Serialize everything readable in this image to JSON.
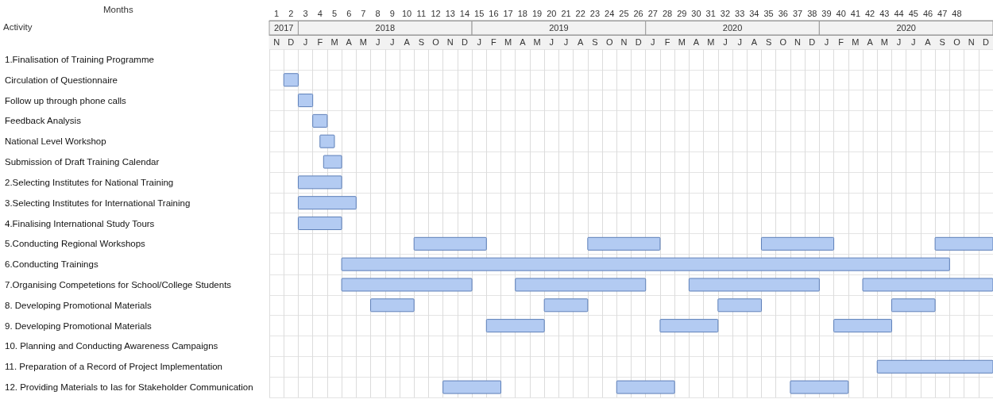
{
  "chart_data": {
    "type": "bar",
    "orientation": "horizontal",
    "xlabel": "Months",
    "ylabel": "Activity",
    "categories": [
      "1.Finalisation of Training Programme",
      "Circulation of Questionnaire",
      "Follow up through phone calls",
      "Feedback Analysis",
      "National Level Workshop",
      "Submission of Draft Training Calendar",
      "2.Selecting Institutes for National Training",
      "3.Selecting Institutes for International Training",
      "4.Finalising International Study Tours",
      "5.Conducting Regional Workshops",
      "6.Conducting Trainings",
      "7.Organising Competetions for School/College Students",
      "8. Developing Promotional Materials",
      "9. Developing Promotional Materials",
      "10. Planning and Conducting Awareness Campaigns",
      "11. Preparation of a Record of Project Implementation",
      "12. Providing Materials to Ias for Stakeholder Communication"
    ],
    "series": [
      {
        "color": "#b3cbf2",
        "base": [
          null,
          1,
          2,
          3,
          3.5,
          3.75,
          2,
          2,
          2,
          10,
          5,
          5,
          7,
          15,
          null,
          42,
          12
        ],
        "values": [
          null,
          1,
          1,
          1,
          1,
          1.25,
          3,
          4,
          3,
          5,
          42,
          9,
          3,
          4,
          null,
          8,
          4
        ]
      },
      {
        "color": "#b3cbf2",
        "base": [
          null,
          null,
          null,
          null,
          null,
          null,
          null,
          null,
          null,
          22,
          null,
          17,
          19,
          27,
          null,
          null,
          24
        ],
        "values": [
          null,
          null,
          null,
          null,
          null,
          null,
          null,
          null,
          null,
          5,
          null,
          9,
          3,
          4,
          null,
          null,
          4
        ]
      },
      {
        "color": "#b3cbf2",
        "base": [
          null,
          null,
          null,
          null,
          null,
          null,
          null,
          null,
          null,
          34,
          null,
          29,
          31,
          39,
          null,
          null,
          36
        ],
        "values": [
          null,
          null,
          null,
          null,
          null,
          null,
          null,
          null,
          null,
          5,
          null,
          9,
          3,
          4,
          null,
          null,
          4
        ]
      },
      {
        "color": "#b3cbf2",
        "base": [
          null,
          null,
          null,
          null,
          null,
          null,
          null,
          null,
          null,
          46,
          null,
          41,
          43,
          null,
          null,
          null,
          null
        ],
        "values": [
          null,
          null,
          null,
          null,
          null,
          null,
          null,
          null,
          null,
          4,
          null,
          9,
          3,
          null,
          null,
          null,
          null
        ]
      }
    ],
    "xlim": [
      0,
      50
    ],
    "xticks": [
      {
        "value": 0.5,
        "label": "1"
      },
      {
        "value": 1.5,
        "label": "2"
      },
      {
        "value": 2.5,
        "label": "3"
      },
      {
        "value": 3.5,
        "label": "4"
      },
      {
        "value": 4.5,
        "label": "5"
      },
      {
        "value": 5.5,
        "label": "6"
      },
      {
        "value": 6.5,
        "label": "7"
      },
      {
        "value": 7.5,
        "label": "8"
      },
      {
        "value": 8.5,
        "label": "9"
      },
      {
        "value": 9.5,
        "label": "10"
      },
      {
        "value": 10.5,
        "label": "11"
      },
      {
        "value": 11.5,
        "label": "12"
      },
      {
        "value": 12.5,
        "label": "13"
      },
      {
        "value": 13.5,
        "label": "14"
      },
      {
        "value": 14.5,
        "label": "15"
      },
      {
        "value": 15.5,
        "label": "16"
      },
      {
        "value": 16.5,
        "label": "17"
      },
      {
        "value": 17.5,
        "label": "18"
      },
      {
        "value": 18.5,
        "label": "19"
      },
      {
        "value": 19.5,
        "label": "20"
      },
      {
        "value": 20.5,
        "label": "21"
      },
      {
        "value": 21.5,
        "label": "22"
      },
      {
        "value": 22.5,
        "label": "23"
      },
      {
        "value": 23.5,
        "label": "24"
      },
      {
        "value": 24.5,
        "label": "25"
      },
      {
        "value": 25.5,
        "label": "26"
      },
      {
        "value": 26.5,
        "label": "27"
      },
      {
        "value": 27.5,
        "label": "28"
      },
      {
        "value": 28.5,
        "label": "29"
      },
      {
        "value": 29.5,
        "label": "30"
      },
      {
        "value": 30.5,
        "label": "31"
      },
      {
        "value": 31.5,
        "label": "32"
      },
      {
        "value": 32.5,
        "label": "33"
      },
      {
        "value": 33.5,
        "label": "34"
      },
      {
        "value": 34.5,
        "label": "35"
      },
      {
        "value": 35.5,
        "label": "36"
      },
      {
        "value": 36.5,
        "label": "37"
      },
      {
        "value": 37.5,
        "label": "38"
      },
      {
        "value": 38.5,
        "label": "39"
      },
      {
        "value": 39.5,
        "label": "40"
      },
      {
        "value": 40.5,
        "label": "41"
      },
      {
        "value": 41.5,
        "label": "42"
      },
      {
        "value": 42.5,
        "label": "43"
      },
      {
        "value": 43.5,
        "label": "44"
      },
      {
        "value": 44.5,
        "label": "45"
      },
      {
        "value": 45.5,
        "label": "46"
      },
      {
        "value": 46.5,
        "label": "47"
      },
      {
        "value": 47.5,
        "label": "48"
      }
    ],
    "annotations": [
      "2017",
      "2018",
      "2019",
      "2020",
      "2020",
      "N",
      "D",
      "J",
      "F",
      "M",
      "A",
      "M",
      "J",
      "J",
      "A",
      "S",
      "O",
      "N",
      "D",
      "J",
      "F",
      "M",
      "A",
      "M",
      "J",
      "J",
      "A",
      "S",
      "O",
      "N",
      "D",
      "J",
      "F",
      "M",
      "A",
      "M",
      "J",
      "J",
      "A",
      "S",
      "O",
      "N",
      "D",
      "J",
      "F",
      "M",
      "A",
      "M",
      "J",
      "J",
      "A",
      "S",
      "O",
      "N",
      "D"
    ],
    "grid": true
  }
}
